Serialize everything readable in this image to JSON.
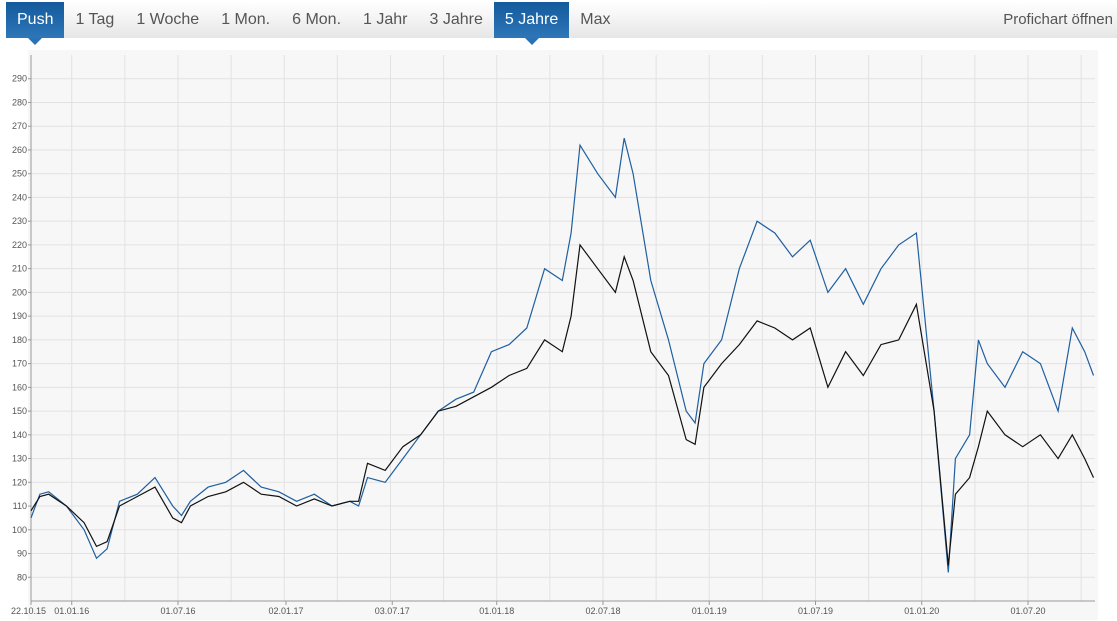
{
  "tabs": [
    {
      "label": "Push",
      "active": true
    },
    {
      "label": "1 Tag"
    },
    {
      "label": "1 Woche"
    },
    {
      "label": "1 Mon."
    },
    {
      "label": "6 Mon."
    },
    {
      "label": "1 Jahr"
    },
    {
      "label": "3 Jahre"
    },
    {
      "label": "5 Jahre",
      "active": true
    },
    {
      "label": "Max"
    }
  ],
  "profichart_label": "Profichart öffnen",
  "chart_data": {
    "type": "line",
    "x_unit": "months since 22.10.15",
    "ylim": [
      70,
      300
    ],
    "yticks": [
      80,
      90,
      100,
      110,
      120,
      130,
      140,
      150,
      160,
      170,
      180,
      190,
      200,
      210,
      220,
      230,
      240,
      250,
      260,
      270,
      280,
      290
    ],
    "xticks": [
      {
        "m": 0,
        "label": "22.10.15"
      },
      {
        "m": 2.3,
        "label": "01.01.16"
      },
      {
        "m": 8.3,
        "label": "01.07.16"
      },
      {
        "m": 14.4,
        "label": "02.01.17"
      },
      {
        "m": 20.4,
        "label": "03.07.17"
      },
      {
        "m": 26.3,
        "label": "01.01.18"
      },
      {
        "m": 32.3,
        "label": "02.07.18"
      },
      {
        "m": 38.3,
        "label": "01.01.19"
      },
      {
        "m": 44.3,
        "label": "01.07.19"
      },
      {
        "m": 50.3,
        "label": "01.01.20"
      },
      {
        "m": 56.3,
        "label": "01.07.20"
      }
    ],
    "grid": true,
    "series": [
      {
        "name": "blue",
        "color": "#1f5fa0",
        "x": [
          0,
          0.5,
          1,
          2,
          3,
          3.7,
          4.3,
          5,
          6,
          7,
          8,
          8.5,
          9,
          10,
          11,
          12,
          13,
          14,
          15,
          16,
          17,
          18,
          18.5,
          19,
          20,
          21,
          22,
          23,
          24,
          25,
          26,
          27,
          28,
          29,
          30,
          30.5,
          31,
          32,
          33,
          33.5,
          34,
          35,
          36,
          37,
          37.5,
          38,
          39,
          40,
          41,
          42,
          43,
          44,
          45,
          46,
          47,
          48,
          49,
          50,
          51,
          51.8,
          52.2,
          53,
          53.5,
          54,
          55,
          56,
          57,
          58,
          58.8,
          59.5,
          60
        ],
        "y": [
          105,
          115,
          116,
          110,
          100,
          88,
          92,
          112,
          115,
          122,
          110,
          106,
          112,
          118,
          120,
          125,
          118,
          116,
          112,
          115,
          110,
          112,
          110,
          122,
          120,
          130,
          140,
          150,
          155,
          158,
          175,
          178,
          185,
          210,
          205,
          225,
          262,
          250,
          240,
          265,
          250,
          205,
          180,
          150,
          145,
          170,
          180,
          210,
          230,
          225,
          215,
          222,
          200,
          210,
          195,
          210,
          220,
          225,
          150,
          82,
          130,
          140,
          180,
          170,
          160,
          175,
          170,
          150,
          185,
          175,
          165
        ]
      },
      {
        "name": "black",
        "color": "#111111",
        "x": [
          0,
          0.5,
          1,
          2,
          3,
          3.7,
          4.3,
          5,
          6,
          7,
          8,
          8.5,
          9,
          10,
          11,
          12,
          13,
          14,
          15,
          16,
          17,
          18,
          18.5,
          19,
          20,
          21,
          22,
          23,
          24,
          25,
          26,
          27,
          28,
          29,
          30,
          30.5,
          31,
          32,
          33,
          33.5,
          34,
          35,
          36,
          37,
          37.5,
          38,
          39,
          40,
          41,
          42,
          43,
          44,
          45,
          46,
          47,
          48,
          49,
          50,
          51,
          51.8,
          52.2,
          53,
          53.5,
          54,
          55,
          56,
          57,
          58,
          58.8,
          59.5,
          60
        ],
        "y": [
          108,
          114,
          115,
          110,
          103,
          93,
          95,
          110,
          114,
          118,
          105,
          103,
          110,
          114,
          116,
          120,
          115,
          114,
          110,
          113,
          110,
          112,
          112,
          128,
          125,
          135,
          140,
          150,
          152,
          156,
          160,
          165,
          168,
          180,
          175,
          190,
          220,
          210,
          200,
          215,
          205,
          175,
          165,
          138,
          136,
          160,
          170,
          178,
          188,
          185,
          180,
          185,
          160,
          175,
          165,
          178,
          180,
          195,
          150,
          85,
          115,
          122,
          135,
          150,
          140,
          135,
          140,
          130,
          140,
          130,
          122
        ]
      }
    ]
  }
}
